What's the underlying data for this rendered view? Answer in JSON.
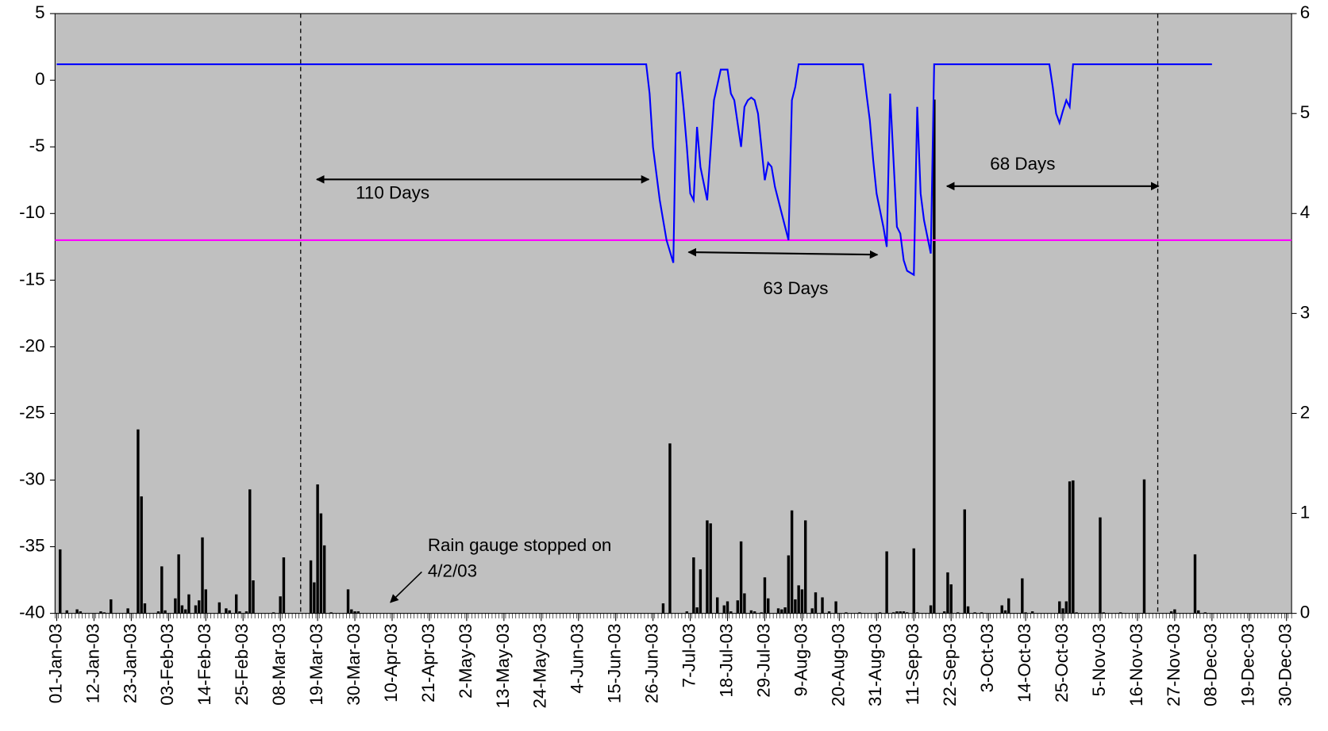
{
  "chart_data": {
    "type": "combo",
    "xlim": [
      "01-Jan-03",
      "31-Dec-03"
    ],
    "xticks": [
      "01-Jan-03",
      "12-Jan-03",
      "23-Jan-03",
      "03-Feb-03",
      "14-Feb-03",
      "25-Feb-03",
      "08-Mar-03",
      "19-Mar-03",
      "30-Mar-03",
      "10-Apr-03",
      "21-Apr-03",
      "2-May-03",
      "13-May-03",
      "24-May-03",
      "4-Jun-03",
      "15-Jun-03",
      "26-Jun-03",
      "7-Jul-03",
      "18-Jul-03",
      "29-Jul-03",
      "9-Aug-03",
      "20-Aug-03",
      "31-Aug-03",
      "11-Sep-03",
      "22-Sep-03",
      "3-Oct-03",
      "14-Oct-03",
      "25-Oct-03",
      "5-Nov-03",
      "16-Nov-03",
      "27-Nov-03",
      "08-Dec-03",
      "19-Dec-03",
      "30-Dec-03"
    ],
    "ylim": [
      -40,
      5
    ],
    "yticks": [
      -40,
      -35,
      -30,
      -25,
      -20,
      -15,
      -10,
      -5,
      0,
      5
    ],
    "y2lim": [
      0,
      6
    ],
    "y2ticks": [
      0,
      1,
      2,
      3,
      4,
      5,
      6
    ],
    "background": "#c0c0c0",
    "series": [
      {
        "type": "line",
        "color": "#0000ff",
        "x": [
          "01-Jan-03",
          "24-Jun-03",
          "25-Jun-03",
          "26-Jun-03",
          "28-Jun-03",
          "30-Jun-03",
          "02-Jul-03",
          "03-Jul-03",
          "04-Jul-03",
          "05-Jul-03",
          "06-Jul-03",
          "07-Jul-03",
          "08-Jul-03",
          "09-Jul-03",
          "10-Jul-03",
          "12-Jul-03",
          "14-Jul-03",
          "16-Jul-03",
          "18-Jul-03",
          "19-Jul-03",
          "20-Jul-03",
          "22-Jul-03",
          "23-Jul-03",
          "24-Jul-03",
          "25-Jul-03",
          "26-Jul-03",
          "27-Jul-03",
          "29-Jul-03",
          "30-Jul-03",
          "31-Jul-03",
          "01-Aug-03",
          "03-Aug-03",
          "05-Aug-03",
          "06-Aug-03",
          "07-Aug-03",
          "08-Aug-03",
          "27-Aug-03",
          "28-Aug-03",
          "29-Aug-03",
          "30-Aug-03",
          "31-Aug-03",
          "02-Sep-03",
          "03-Sep-03",
          "04-Sep-03",
          "06-Sep-03",
          "07-Sep-03",
          "08-Sep-03",
          "09-Sep-03",
          "11-Sep-03",
          "12-Sep-03",
          "13-Sep-03",
          "14-Sep-03",
          "16-Sep-03",
          "17-Sep-03",
          "21-Oct-03",
          "22-Oct-03",
          "23-Oct-03",
          "24-Oct-03",
          "25-Oct-03",
          "26-Oct-03",
          "27-Oct-03",
          "28-Oct-03",
          "08-Dec-03"
        ],
        "values": [
          1.2,
          1.2,
          -1,
          -5,
          -9,
          -12,
          -13.7,
          0.5,
          0.6,
          -2,
          -5,
          -8.5,
          -9,
          -3.5,
          -6.5,
          -9,
          -1.5,
          0.8,
          0.8,
          -1,
          -1.5,
          -5,
          -2,
          -1.5,
          -1.3,
          -1.5,
          -2.5,
          -7.5,
          -6.2,
          -6.5,
          -8,
          -10,
          -12,
          -1.5,
          -0.5,
          1.2,
          1.2,
          -1,
          -3,
          -6,
          -8.5,
          -11,
          -12.5,
          -1,
          -11,
          -11.5,
          -13.5,
          -14.3,
          -14.6,
          -2,
          -8.5,
          -10.5,
          -13,
          1.2,
          1.2,
          -0.5,
          -2.5,
          -3.2,
          -2.3,
          -1.5,
          -2,
          1.2,
          1.2
        ]
      },
      {
        "type": "bar",
        "axis": "y2",
        "color": "#000000",
        "x": [
          "02-Jan-03",
          "04-Jan-03",
          "07-Jan-03",
          "08-Jan-03",
          "14-Jan-03",
          "15-Jan-03",
          "17-Jan-03",
          "22-Jan-03",
          "25-Jan-03",
          "26-Jan-03",
          "27-Jan-03",
          "31-Jan-03",
          "01-Feb-03",
          "02-Feb-03",
          "05-Feb-03",
          "06-Feb-03",
          "07-Feb-03",
          "08-Feb-03",
          "09-Feb-03",
          "11-Feb-03",
          "12-Feb-03",
          "13-Feb-03",
          "14-Feb-03",
          "18-Feb-03",
          "20-Feb-03",
          "21-Feb-03",
          "23-Feb-03",
          "24-Feb-03",
          "26-Feb-03",
          "27-Feb-03",
          "28-Feb-03",
          "06-Mar-03",
          "08-Mar-03",
          "09-Mar-03",
          "17-Mar-03",
          "18-Mar-03",
          "19-Mar-03",
          "20-Mar-03",
          "21-Mar-03",
          "23-Mar-03",
          "28-Mar-03",
          "29-Mar-03",
          "30-Mar-03",
          "31-Mar-03",
          "29-Jun-03",
          "01-Jul-03",
          "06-Jul-03",
          "08-Jul-03",
          "09-Jul-03",
          "10-Jul-03",
          "12-Jul-03",
          "13-Jul-03",
          "15-Jul-03",
          "17-Jul-03",
          "18-Jul-03",
          "19-Jul-03",
          "21-Jul-03",
          "22-Jul-03",
          "23-Jul-03",
          "25-Jul-03",
          "26-Jul-03",
          "28-Jul-03",
          "29-Jul-03",
          "30-Jul-03",
          "02-Aug-03",
          "03-Aug-03",
          "04-Aug-03",
          "05-Aug-03",
          "06-Aug-03",
          "07-Aug-03",
          "08-Aug-03",
          "09-Aug-03",
          "10-Aug-03",
          "12-Aug-03",
          "13-Aug-03",
          "15-Aug-03",
          "17-Aug-03",
          "19-Aug-03",
          "22-Aug-03",
          "26-Aug-03",
          "01-Sep-03",
          "03-Sep-03",
          "05-Sep-03",
          "06-Sep-03",
          "07-Sep-03",
          "08-Sep-03",
          "09-Sep-03",
          "11-Sep-03",
          "12-Sep-03",
          "16-Sep-03",
          "17-Sep-03",
          "20-Sep-03",
          "21-Sep-03",
          "22-Sep-03",
          "24-Sep-03",
          "26-Sep-03",
          "27-Sep-03",
          "29-Sep-03",
          "01-Oct-03",
          "07-Oct-03",
          "08-Oct-03",
          "09-Oct-03",
          "13-Oct-03",
          "14-Oct-03",
          "16-Oct-03",
          "24-Oct-03",
          "25-Oct-03",
          "26-Oct-03",
          "27-Oct-03",
          "28-Oct-03",
          "29-Oct-03",
          "05-Nov-03",
          "06-Nov-03",
          "11-Nov-03",
          "18-Nov-03",
          "26-Nov-03",
          "27-Nov-03",
          "03-Dec-03",
          "04-Dec-03",
          "06-Dec-03"
        ],
        "values": [
          0.64,
          0.03,
          0.04,
          0.02,
          0.02,
          0.01,
          0.14,
          0.05,
          1.84,
          1.17,
          0.1,
          0.02,
          0.47,
          0.03,
          0.15,
          0.59,
          0.08,
          0.04,
          0.19,
          0.08,
          0.13,
          0.76,
          0.24,
          0.11,
          0.05,
          0.03,
          0.19,
          0.02,
          0.02,
          1.24,
          0.33,
          0.01,
          0.17,
          0.56,
          0.53,
          0.31,
          1.29,
          1.0,
          0.68,
          0.01,
          0.24,
          0.04,
          0.02,
          0.02,
          0.1,
          1.7,
          0.02,
          0.56,
          0.06,
          0.44,
          0.93,
          0.9,
          0.16,
          0.08,
          0.12,
          0.02,
          0.13,
          0.72,
          0.2,
          0.03,
          0.02,
          0.01,
          0.36,
          0.15,
          0.05,
          0.04,
          0.06,
          0.58,
          1.03,
          0.14,
          0.28,
          0.24,
          0.93,
          0.05,
          0.21,
          0.16,
          0.02,
          0.12,
          0.01,
          0.01,
          0.01,
          0.62,
          0.01,
          0.02,
          0.02,
          0.02,
          0.01,
          0.65,
          0.01,
          0.08,
          5.14,
          0.02,
          0.41,
          0.29,
          0.01,
          1.04,
          0.07,
          0.01,
          0.01,
          0.08,
          0.03,
          0.15,
          0.35,
          0.01,
          0.02,
          0.12,
          0.05,
          0.12,
          1.32,
          1.33,
          0.01,
          0.96,
          0.01,
          0.01,
          1.34,
          0.02,
          0.04,
          0.59,
          0.03,
          0.01
        ]
      }
    ],
    "hlines": [
      {
        "value": -12,
        "color": "#ff00ff"
      }
    ],
    "vlines": [
      "14-Mar-03",
      "22-Nov-03"
    ],
    "annotations": [
      {
        "text": "110 Days"
      },
      {
        "text": "63 Days"
      },
      {
        "text": "68 Days"
      },
      {
        "lines": [
          "Rain gauge stopped on",
          "4/2/03"
        ]
      }
    ]
  }
}
